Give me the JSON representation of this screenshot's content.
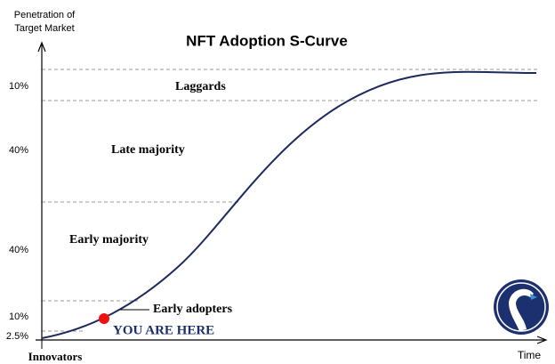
{
  "title": "NFT Adoption S-Curve",
  "y_axis_label": [
    "Penetration of",
    "Target Market"
  ],
  "x_axis_label": "Time",
  "segments": [
    {
      "name": "Innovators",
      "share": "2.5%"
    },
    {
      "name": "Early adopters",
      "share": "10%"
    },
    {
      "name": "Early majority",
      "share": "40%"
    },
    {
      "name": "Late majority",
      "share": "40%"
    },
    {
      "name": "Laggards",
      "share": "10%"
    }
  ],
  "marker_label": "YOU ARE HERE"
}
